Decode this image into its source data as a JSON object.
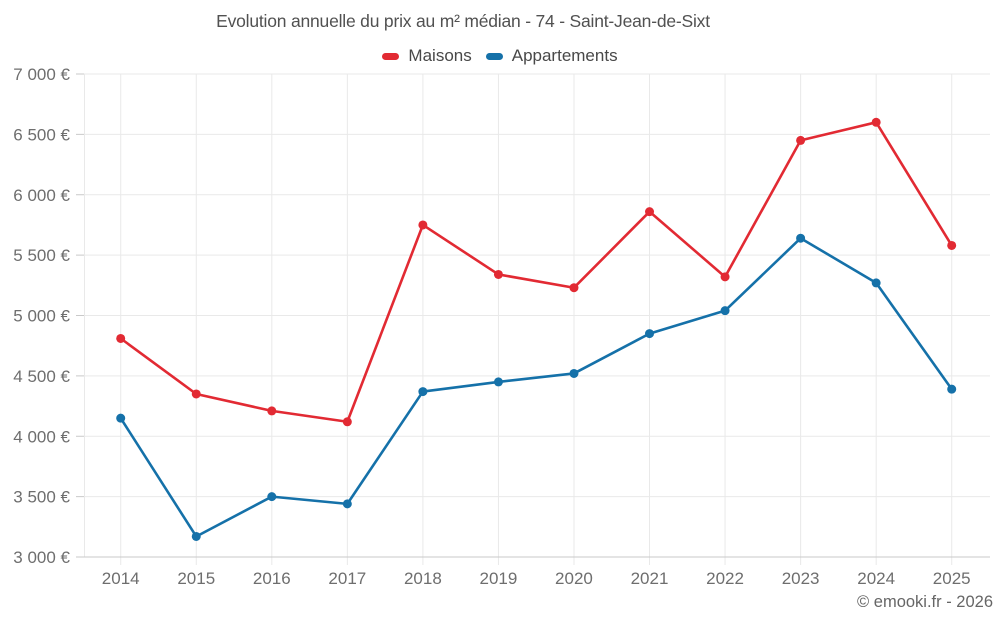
{
  "header": {
    "title": "Evolution annuelle du prix au m² médian - 74 - Saint-Jean-de-Sixt"
  },
  "legend": {
    "items": [
      {
        "label": "Maisons",
        "color": "#e22a33"
      },
      {
        "label": "Appartements",
        "color": "#1571a9"
      }
    ]
  },
  "footer": {
    "credit": "© emooki.fr - 2026"
  },
  "chart_data": {
    "type": "line",
    "title": "Evolution annuelle du prix au m² médian - 74 - Saint-Jean-de-Sixt",
    "categories": [
      2014,
      2015,
      2016,
      2017,
      2018,
      2019,
      2020,
      2021,
      2022,
      2023,
      2024,
      2025
    ],
    "series": [
      {
        "name": "Maisons",
        "color": "#e22a33",
        "values": [
          4810,
          4350,
          4210,
          4120,
          5750,
          5340,
          5230,
          5860,
          5320,
          6450,
          6600,
          5580
        ]
      },
      {
        "name": "Appartements",
        "color": "#1571a9",
        "values": [
          4150,
          3170,
          3500,
          3440,
          4370,
          4450,
          4520,
          4850,
          5040,
          5640,
          5270,
          4390
        ]
      }
    ],
    "xlabel": "",
    "ylabel": "",
    "ylim": [
      3000,
      7000
    ],
    "yticks": [
      {
        "value": 7000,
        "label": "7 000 €"
      },
      {
        "value": 6500,
        "label": "6 500 €"
      },
      {
        "value": 6000,
        "label": "6 000 €"
      },
      {
        "value": 5500,
        "label": "5 500 €"
      },
      {
        "value": 5000,
        "label": "5 000 €"
      },
      {
        "value": 4500,
        "label": "4 500 €"
      },
      {
        "value": 4000,
        "label": "4 000 €"
      },
      {
        "value": 3500,
        "label": "3 500 €"
      },
      {
        "value": 3000,
        "label": "3 000 €"
      }
    ],
    "grid": true,
    "legend_position": "top",
    "currency": "€"
  }
}
